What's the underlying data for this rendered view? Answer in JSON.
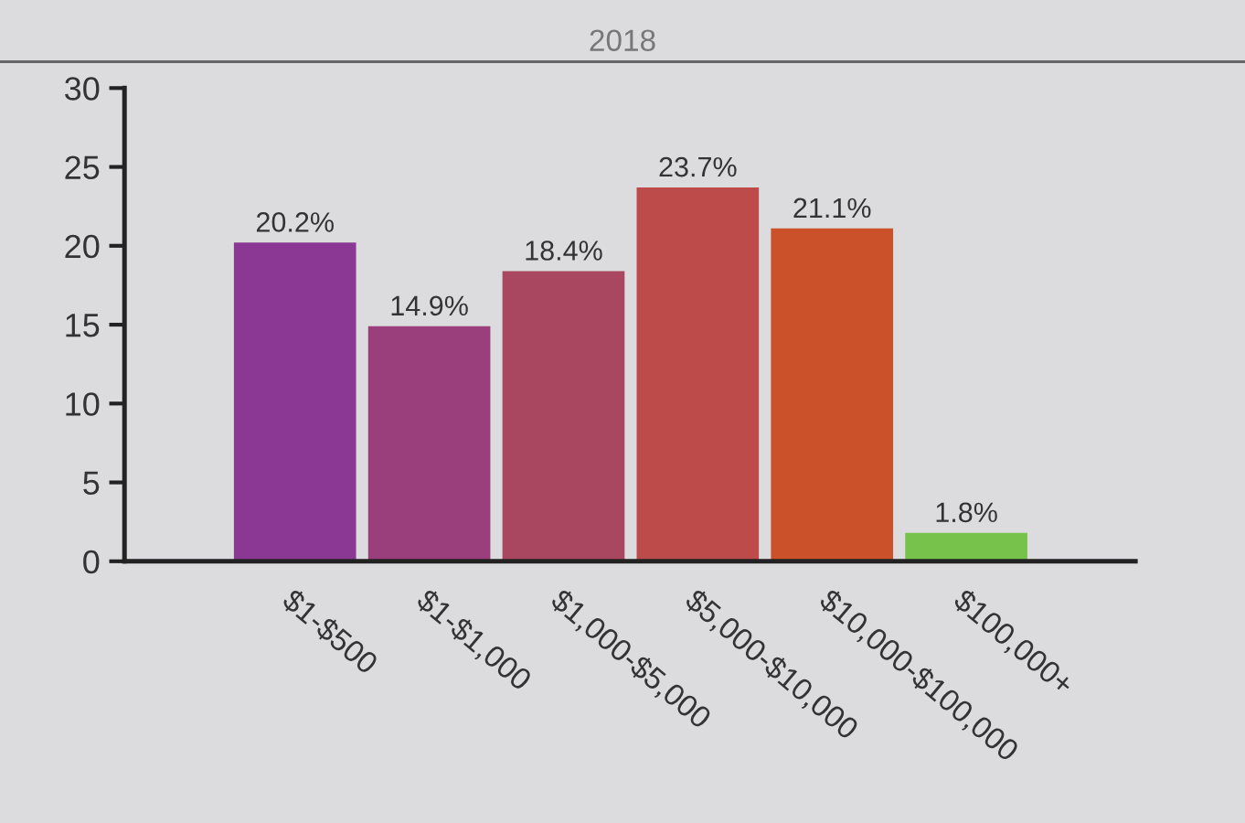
{
  "chart_data": {
    "type": "bar",
    "subtitle": "2018",
    "categories": [
      "$1-$500",
      "$1-$1,000",
      "$1,000-$5,000",
      "$5,000-$10,000",
      "$10,000-$100,000",
      "$100,000+"
    ],
    "values": [
      20.2,
      14.9,
      18.4,
      23.7,
      21.1,
      1.8
    ],
    "colors": [
      "#8a3893",
      "#9a3f7c",
      "#a8475f",
      "#bd4b4a",
      "#cb512b",
      "#77c24a"
    ],
    "value_labels": [
      "20.2%",
      "14.9%",
      "18.4%",
      "23.7%",
      "21.1%",
      "1.8%"
    ],
    "ylim": [
      0,
      30
    ],
    "yticks": [
      0,
      5,
      10,
      15,
      20,
      25,
      30
    ],
    "grid": false,
    "legend": false
  }
}
